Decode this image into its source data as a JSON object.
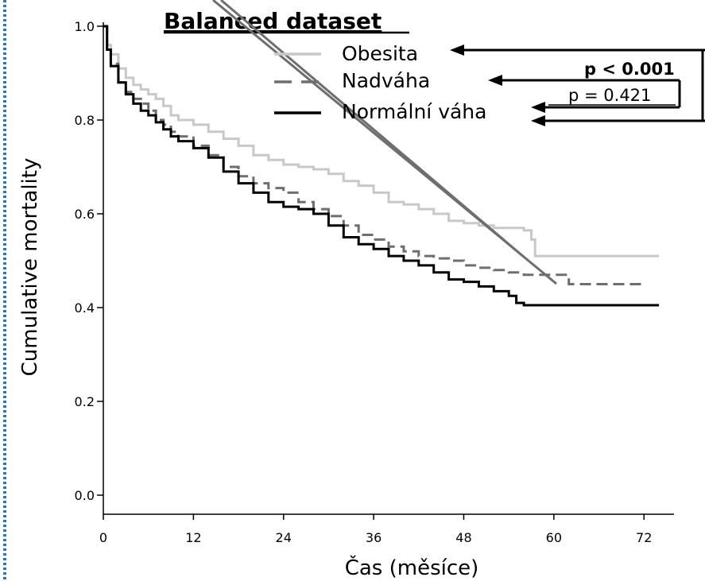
{
  "chart_data": {
    "type": "line",
    "title": "Balanced dataset",
    "xlabel": "Čas (měsíce)",
    "ylabel": "Cumulative mortality",
    "xlim": [
      0,
      76
    ],
    "ylim": [
      0,
      1
    ],
    "xticks": [
      "0",
      "12",
      "24",
      "36",
      "48",
      "60",
      "72"
    ],
    "yticks": [
      "0.0",
      "0.2",
      "0.4",
      "0.6",
      "0.8",
      "1.0"
    ],
    "series": [
      {
        "name": "Obesita",
        "color": "#c8c8c8",
        "style": "solid",
        "points": [
          [
            0,
            1.0
          ],
          [
            0.5,
            0.96
          ],
          [
            1,
            0.94
          ],
          [
            2,
            0.91
          ],
          [
            3,
            0.89
          ],
          [
            4,
            0.875
          ],
          [
            5,
            0.865
          ],
          [
            6,
            0.855
          ],
          [
            7,
            0.845
          ],
          [
            8,
            0.83
          ],
          [
            9,
            0.81
          ],
          [
            10,
            0.8
          ],
          [
            12,
            0.79
          ],
          [
            14,
            0.775
          ],
          [
            16,
            0.76
          ],
          [
            18,
            0.745
          ],
          [
            20,
            0.725
          ],
          [
            22,
            0.715
          ],
          [
            24,
            0.705
          ],
          [
            26,
            0.7
          ],
          [
            28,
            0.695
          ],
          [
            30,
            0.685
          ],
          [
            32,
            0.67
          ],
          [
            34,
            0.66
          ],
          [
            36,
            0.645
          ],
          [
            38,
            0.625
          ],
          [
            40,
            0.62
          ],
          [
            42,
            0.61
          ],
          [
            44,
            0.6
          ],
          [
            46,
            0.585
          ],
          [
            48,
            0.58
          ],
          [
            50,
            0.575
          ],
          [
            52,
            0.57
          ],
          [
            54,
            0.57
          ],
          [
            56,
            0.565
          ],
          [
            57,
            0.545
          ],
          [
            57.5,
            0.51
          ],
          [
            60,
            0.51
          ],
          [
            74,
            0.51
          ]
        ]
      },
      {
        "name": "Nadváha",
        "color": "#6e6e6e",
        "style": "dashed",
        "points": [
          [
            0,
            1.0
          ],
          [
            0.5,
            0.95
          ],
          [
            1,
            0.92
          ],
          [
            2,
            0.88
          ],
          [
            3,
            0.86
          ],
          [
            4,
            0.845
          ],
          [
            5,
            0.835
          ],
          [
            6,
            0.82
          ],
          [
            7,
            0.8
          ],
          [
            8,
            0.79
          ],
          [
            9,
            0.775
          ],
          [
            10,
            0.765
          ],
          [
            12,
            0.745
          ],
          [
            14,
            0.725
          ],
          [
            16,
            0.7
          ],
          [
            18,
            0.68
          ],
          [
            20,
            0.665
          ],
          [
            22,
            0.655
          ],
          [
            24,
            0.645
          ],
          [
            26,
            0.625
          ],
          [
            28,
            0.61
          ],
          [
            30,
            0.595
          ],
          [
            32,
            0.575
          ],
          [
            34,
            0.555
          ],
          [
            36,
            0.545
          ],
          [
            38,
            0.53
          ],
          [
            40,
            0.52
          ],
          [
            42,
            0.51
          ],
          [
            44,
            0.505
          ],
          [
            46,
            0.5
          ],
          [
            48,
            0.49
          ],
          [
            50,
            0.485
          ],
          [
            52,
            0.48
          ],
          [
            54,
            0.475
          ],
          [
            56,
            0.47
          ],
          [
            58,
            0.47
          ],
          [
            60,
            0.47
          ],
          [
            62,
            0.45
          ],
          [
            72,
            0.45
          ]
        ]
      },
      {
        "name": "Normální váha",
        "color": "#000000",
        "style": "solid",
        "points": [
          [
            0,
            1.0
          ],
          [
            0.5,
            0.95
          ],
          [
            1,
            0.915
          ],
          [
            2,
            0.88
          ],
          [
            3,
            0.855
          ],
          [
            4,
            0.835
          ],
          [
            5,
            0.82
          ],
          [
            6,
            0.81
          ],
          [
            7,
            0.795
          ],
          [
            8,
            0.78
          ],
          [
            9,
            0.765
          ],
          [
            10,
            0.755
          ],
          [
            12,
            0.74
          ],
          [
            14,
            0.72
          ],
          [
            16,
            0.69
          ],
          [
            18,
            0.665
          ],
          [
            20,
            0.645
          ],
          [
            22,
            0.625
          ],
          [
            24,
            0.615
          ],
          [
            26,
            0.61
          ],
          [
            28,
            0.6
          ],
          [
            30,
            0.575
          ],
          [
            32,
            0.55
          ],
          [
            34,
            0.535
          ],
          [
            36,
            0.525
          ],
          [
            38,
            0.51
          ],
          [
            40,
            0.5
          ],
          [
            42,
            0.49
          ],
          [
            44,
            0.475
          ],
          [
            46,
            0.46
          ],
          [
            48,
            0.455
          ],
          [
            50,
            0.445
          ],
          [
            52,
            0.435
          ],
          [
            54,
            0.425
          ],
          [
            55,
            0.41
          ],
          [
            56,
            0.405
          ],
          [
            60,
            0.405
          ],
          [
            74,
            0.405
          ]
        ]
      }
    ],
    "annotations": {
      "p_bold": "p < 0.001",
      "p_normal": "p = 0.421"
    },
    "legend_position": "top-right"
  }
}
